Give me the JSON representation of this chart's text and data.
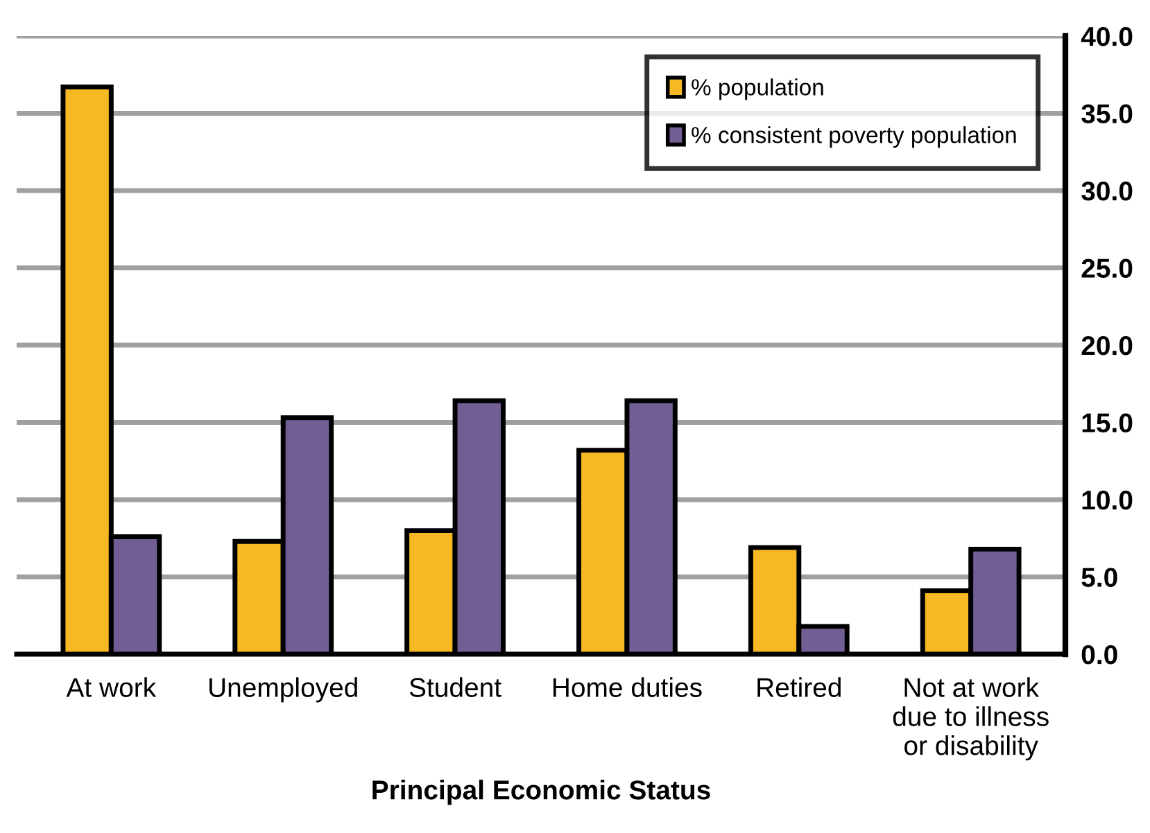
{
  "chart_data": {
    "type": "bar",
    "xlabel": "Principal Economic Status",
    "categories": [
      "At work",
      "Unemployed",
      "Student",
      "Home duties",
      "Retired",
      "Not at work\ndue to illness\nor disability"
    ],
    "series": [
      {
        "name": "% population",
        "color": "#f7b923",
        "values": [
          36.7,
          7.3,
          8.0,
          13.2,
          6.9,
          4.1
        ]
      },
      {
        "name": "% consistent poverty population",
        "color": "#715e94",
        "values": [
          7.6,
          15.3,
          16.4,
          16.4,
          1.8,
          6.8
        ]
      }
    ],
    "ylim": [
      0,
      40
    ],
    "yticks": [
      {
        "value": 0,
        "label": "0.0"
      },
      {
        "value": 5,
        "label": "5.0"
      },
      {
        "value": 10,
        "label": "10.0"
      },
      {
        "value": 15,
        "label": "15.0"
      },
      {
        "value": 20,
        "label": "20.0"
      },
      {
        "value": 25,
        "label": "25.0"
      },
      {
        "value": 30,
        "label": "30.0"
      },
      {
        "value": 35,
        "label": "35.0"
      },
      {
        "value": 40,
        "label": "40.0"
      }
    ],
    "grid": "y",
    "legend": "top right"
  }
}
